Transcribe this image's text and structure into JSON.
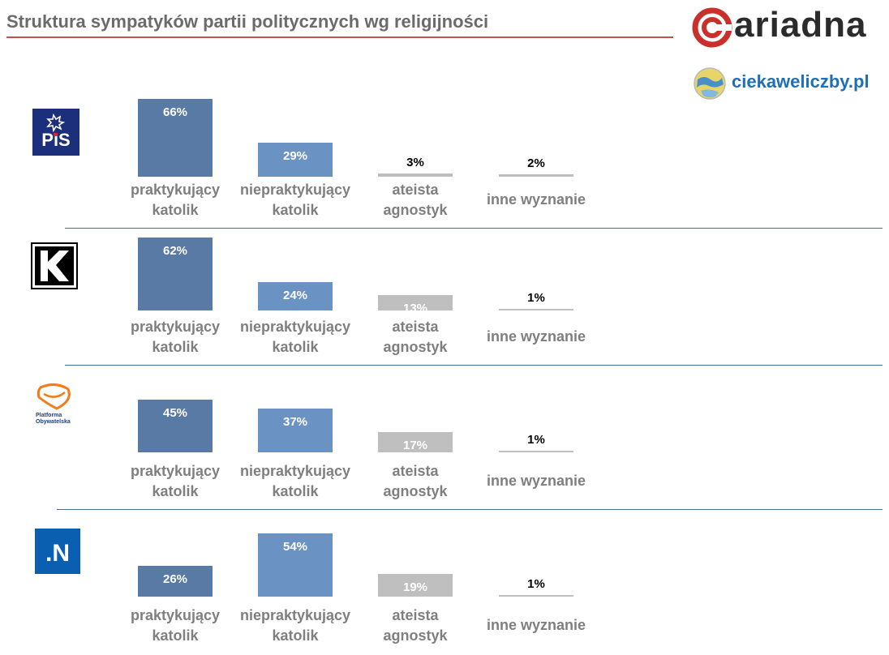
{
  "header": {
    "title": "Struktura sympatyków partii politycznych wg religijności",
    "brand": "ariadna",
    "site": "ciekaweliczby.pl"
  },
  "colors": {
    "practicing": "#5a7aa6",
    "nonpracticing": "#6a93c4",
    "atheist": "#bfbfbf",
    "other": "#bfbfbf",
    "title_line": "#c55050",
    "separator": "#4e6f8f"
  },
  "chart_data": {
    "type": "bar",
    "title": "Struktura sympatyków partii politycznych wg religijności",
    "unit": "%",
    "categories": [
      [
        "praktykujący",
        "katolik"
      ],
      [
        "niepraktykujący",
        "katolik"
      ],
      [
        "ateista",
        "agnostyk"
      ],
      [
        "inne wyznanie"
      ]
    ],
    "groups": [
      {
        "party_logo": "PiS",
        "values": [
          66,
          29,
          3,
          2
        ],
        "labels": [
          "66%",
          "29%",
          "3%",
          "2%"
        ]
      },
      {
        "party_logo": "K",
        "values": [
          62,
          24,
          13,
          1
        ],
        "labels": [
          "62%",
          "24%",
          "13%",
          "1%"
        ]
      },
      {
        "party_logo": "Platforma Obywatelska",
        "values": [
          45,
          37,
          17,
          1
        ],
        "labels": [
          "45%",
          "37%",
          "17%",
          "1%"
        ]
      },
      {
        "party_logo": ".N",
        "values": [
          26,
          54,
          19,
          1
        ],
        "labels": [
          "26%",
          "54%",
          "19%",
          "1%"
        ]
      }
    ]
  }
}
